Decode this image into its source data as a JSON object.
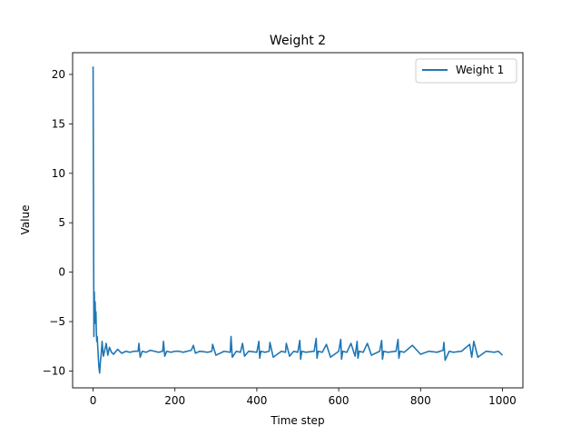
{
  "chart_data": {
    "type": "line",
    "title": "Weight 2",
    "xlabel": "Time step",
    "ylabel": "Value",
    "xlim": [
      -50,
      1050
    ],
    "ylim": [
      -11.7,
      22.2
    ],
    "x_ticks": [
      0,
      200,
      400,
      600,
      800,
      1000
    ],
    "y_ticks": [
      -10,
      -5,
      0,
      5,
      10,
      15,
      20
    ],
    "grid": false,
    "legend": {
      "position": "top-right"
    },
    "series": [
      {
        "name": "Weight 1",
        "color": "#1f77b4",
        "x": [
          0,
          1,
          2,
          3,
          4,
          5,
          6,
          7,
          8,
          9,
          10,
          12,
          14,
          16,
          18,
          20,
          22,
          25,
          28,
          32,
          36,
          40,
          45,
          50,
          60,
          70,
          80,
          90,
          100,
          110,
          112,
          115,
          120,
          130,
          140,
          150,
          160,
          170,
          172,
          175,
          180,
          190,
          200,
          210,
          220,
          240,
          245,
          250,
          260,
          280,
          290,
          292,
          300,
          320,
          335,
          337,
          340,
          350,
          360,
          365,
          370,
          380,
          400,
          405,
          407,
          410,
          420,
          430,
          432,
          440,
          460,
          470,
          472,
          480,
          490,
          500,
          505,
          507,
          510,
          520,
          540,
          545,
          547,
          550,
          560,
          570,
          580,
          600,
          605,
          607,
          610,
          620,
          630,
          640,
          645,
          647,
          650,
          660,
          670,
          680,
          700,
          705,
          707,
          710,
          720,
          740,
          745,
          747,
          750,
          760,
          780,
          800,
          820,
          840,
          855,
          857,
          860,
          870,
          880,
          900,
          920,
          925,
          927,
          930,
          940,
          960,
          980,
          990,
          1000
        ],
        "y": [
          20.8,
          6.0,
          -6.5,
          -2.0,
          -5.0,
          -3.0,
          -5.2,
          -4.0,
          -6.0,
          -7.0,
          -6.5,
          -8.0,
          -9.5,
          -10.2,
          -9.0,
          -8.2,
          -7.0,
          -8.5,
          -8.0,
          -7.2,
          -8.4,
          -7.6,
          -8.1,
          -8.3,
          -7.8,
          -8.2,
          -8.0,
          -8.1,
          -8.0,
          -8.0,
          -7.2,
          -8.6,
          -8.0,
          -8.1,
          -7.9,
          -8.0,
          -8.1,
          -8.0,
          -7.0,
          -8.5,
          -8.0,
          -8.1,
          -8.0,
          -8.0,
          -8.1,
          -7.9,
          -7.4,
          -8.2,
          -8.0,
          -8.1,
          -8.0,
          -7.3,
          -8.4,
          -8.0,
          -8.1,
          -6.5,
          -8.6,
          -8.0,
          -8.1,
          -7.2,
          -8.5,
          -8.0,
          -8.1,
          -7.0,
          -8.7,
          -8.0,
          -8.1,
          -8.0,
          -7.1,
          -8.6,
          -8.0,
          -8.1,
          -7.2,
          -8.5,
          -8.0,
          -8.1,
          -6.9,
          -8.8,
          -8.0,
          -8.1,
          -8.0,
          -6.7,
          -8.7,
          -8.0,
          -8.1,
          -7.3,
          -8.6,
          -8.0,
          -6.8,
          -8.8,
          -8.0,
          -8.1,
          -7.2,
          -8.5,
          -7.0,
          -8.7,
          -8.0,
          -8.1,
          -7.2,
          -8.4,
          -8.0,
          -6.9,
          -8.8,
          -8.0,
          -8.1,
          -8.0,
          -6.8,
          -8.7,
          -8.0,
          -8.1,
          -7.4,
          -8.3,
          -8.0,
          -8.1,
          -7.9,
          -7.1,
          -8.9,
          -8.0,
          -8.1,
          -8.0,
          -7.3,
          -8.6,
          -8.0,
          -7.0,
          -8.6,
          -8.0,
          -8.1,
          -8.0,
          -8.4
        ]
      }
    ]
  }
}
